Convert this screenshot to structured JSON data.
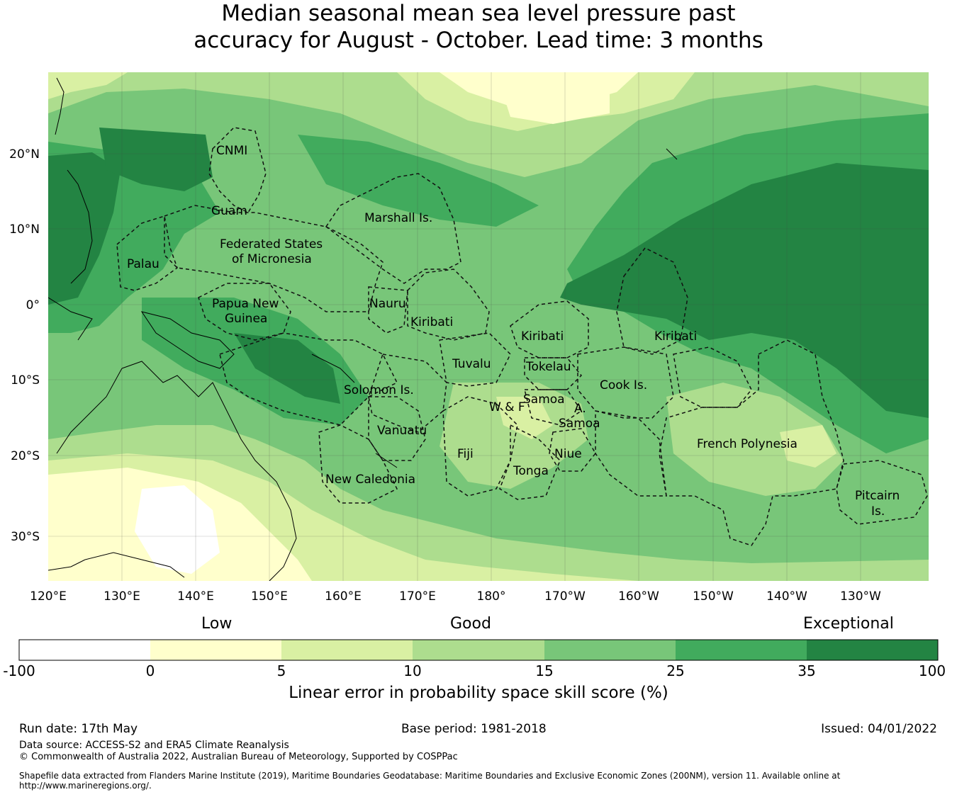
{
  "title_line1": "Median seasonal mean sea level pressure past",
  "title_line2": "accuracy for August - October. Lead time: 3 months",
  "map": {
    "lon_labels": [
      "120°E",
      "130°E",
      "140°E",
      "150°E",
      "160°E",
      "170°E",
      "180°",
      "170°W",
      "160°W",
      "150°W",
      "140°W",
      "130°W"
    ],
    "lat_labels": [
      "20°N",
      "10°N",
      "0°",
      "10°S",
      "20°S",
      "30°S"
    ],
    "regions": [
      {
        "id": "cnmi",
        "label": "CNMI"
      },
      {
        "id": "guam",
        "label": "Guam"
      },
      {
        "id": "marshall",
        "label": "Marshall Is."
      },
      {
        "id": "fsm1",
        "label": "Federated States"
      },
      {
        "id": "fsm2",
        "label": "of Micronesia"
      },
      {
        "id": "palau",
        "label": "Palau"
      },
      {
        "id": "png1",
        "label": "Papua New"
      },
      {
        "id": "png2",
        "label": "Guinea"
      },
      {
        "id": "nauru",
        "label": "Nauru"
      },
      {
        "id": "kiribati_w",
        "label": "Kiribati"
      },
      {
        "id": "kiribati_c",
        "label": "Kiribati"
      },
      {
        "id": "kiribati_e",
        "label": "Kiribati"
      },
      {
        "id": "tuvalu",
        "label": "Tuvalu"
      },
      {
        "id": "tokelau",
        "label": "Tokelau"
      },
      {
        "id": "solomon",
        "label": "Solomon Is."
      },
      {
        "id": "samoa",
        "label": "Samoa"
      },
      {
        "id": "wf",
        "label": "W & F"
      },
      {
        "id": "asamoa1",
        "label": "A."
      },
      {
        "id": "asamoa2",
        "label": "Samoa"
      },
      {
        "id": "cook",
        "label": "Cook Is."
      },
      {
        "id": "vanuatu",
        "label": "Vanuatu"
      },
      {
        "id": "fiji",
        "label": "Fiji"
      },
      {
        "id": "niue",
        "label": "Niue"
      },
      {
        "id": "tonga",
        "label": "Tonga"
      },
      {
        "id": "newcal",
        "label": "New Caledonia"
      },
      {
        "id": "fpoly",
        "label": "French Polynesia"
      },
      {
        "id": "pitcairn1",
        "label": "Pitcairn"
      },
      {
        "id": "pitcairn2",
        "label": "Is."
      }
    ]
  },
  "colorbar": {
    "category_labels": [
      "Low",
      "Good",
      "Exceptional"
    ],
    "ticks": [
      "-100",
      "0",
      "5",
      "10",
      "15",
      "25",
      "35",
      "100"
    ],
    "colors": [
      "#ffffff",
      "#ffffcc",
      "#d9f0a3",
      "#addd8e",
      "#78c679",
      "#41ab5d",
      "#238443"
    ],
    "title": "Linear error in probability space skill score (%)"
  },
  "footer": {
    "run_date": "Run date: 17th May",
    "base_period": "Base period: 1981-2018",
    "issued": "Issued: 04/01/2022",
    "data_source": "Data source: ACCESS-S2 and ERA5 Climate Reanalysis",
    "copyright": "© Commonwealth of Australia 2022, Australian Bureau of Meteorology, Supported by COSPPac",
    "shapefile1": "Shapefile data extracted from Flanders Marine Institute (2019), Maritime Boundaries Geodatabase: Maritime Boundaries and Exclusive Economic Zones (200NM), version 11. Available online at",
    "shapefile2": "http://www.marineregions.org/."
  }
}
